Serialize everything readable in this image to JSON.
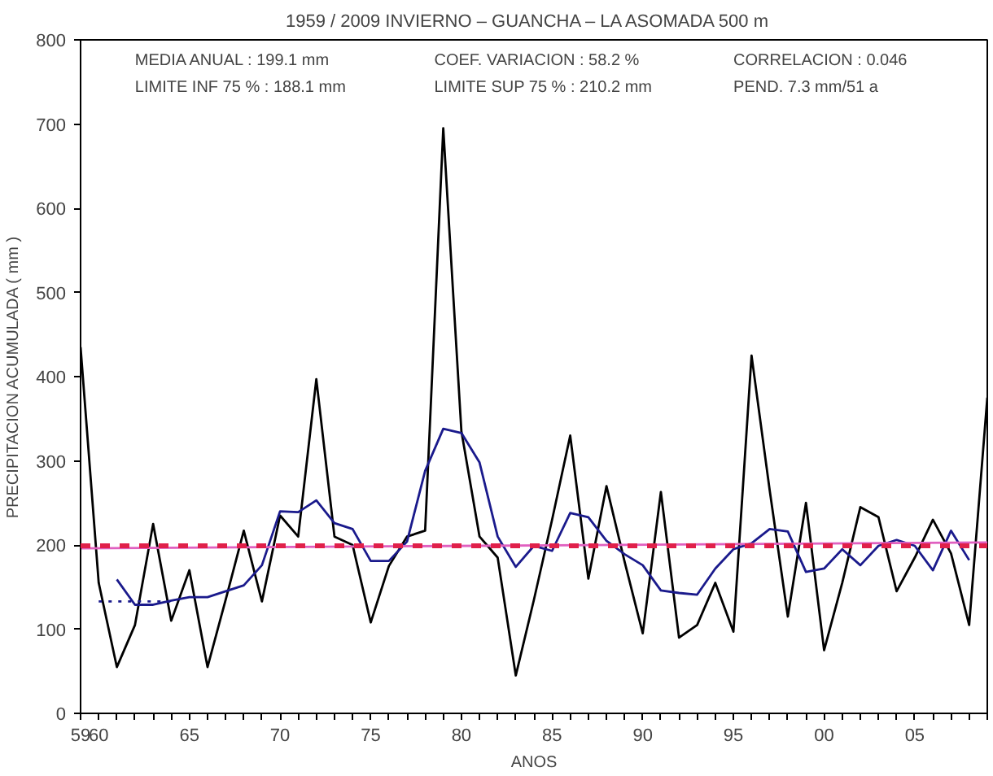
{
  "chart_data": {
    "type": "line",
    "title": "1959 / 2009  INVIERNO – GUANCHA – LA ASOMADA  500 m",
    "xlabel": "ANOS",
    "ylabel": "PRECIPITACION ACUMULADA ( mm )",
    "x": [
      1959,
      1960,
      1961,
      1962,
      1963,
      1964,
      1965,
      1966,
      1967,
      1968,
      1969,
      1970,
      1971,
      1972,
      1973,
      1974,
      1975,
      1976,
      1977,
      1978,
      1979,
      1980,
      1981,
      1982,
      1983,
      1984,
      1985,
      1986,
      1987,
      1988,
      1989,
      1990,
      1991,
      1992,
      1993,
      1994,
      1995,
      1996,
      1997,
      1998,
      1999,
      2000,
      2001,
      2002,
      2003,
      2004,
      2005,
      2006,
      2007,
      2008,
      2009
    ],
    "series": [
      {
        "color": "#000000",
        "values": [
          435,
          155,
          55,
          105,
          225,
          110,
          170,
          55,
          135,
          217,
          133,
          235,
          210,
          397,
          210,
          200,
          108,
          175,
          210,
          217,
          695,
          335,
          210,
          185,
          45,
          135,
          230,
          330,
          160,
          270,
          180,
          95,
          263,
          90,
          105,
          155,
          97,
          425,
          265,
          115,
          250,
          75,
          155,
          245,
          233,
          145,
          185,
          230,
          190,
          105,
          375
        ]
      },
      {
        "color": "#1a1a8c",
        "x": [
          1961,
          1962,
          1963,
          1964,
          1965,
          1966,
          1967,
          1968,
          1969,
          1970,
          1971,
          1972,
          1973,
          1974,
          1975,
          1976,
          1977,
          1978,
          1979,
          1980,
          1981,
          1982,
          1983,
          1984,
          1985,
          1986,
          1987,
          1988,
          1989,
          1990,
          1991,
          1992,
          1993,
          1994,
          1995,
          1996,
          1997,
          1998,
          1999,
          2000,
          2001,
          2002,
          2003,
          2004,
          2005,
          2006,
          2007,
          2008
        ],
        "values": [
          159,
          129,
          129,
          134,
          138,
          138,
          145,
          152,
          176,
          240,
          239,
          253,
          226,
          219,
          181,
          181,
          204,
          288,
          338,
          333,
          298,
          210,
          174,
          199,
          193,
          238,
          233,
          205,
          189,
          176,
          146,
          143,
          141,
          172,
          195,
          202,
          219,
          216,
          168,
          172,
          195,
          176,
          199,
          206,
          199,
          170,
          217,
          182
        ]
      },
      {
        "color": "#1a1a8c",
        "line_style": "dotted",
        "x": [
          1960,
          1964
        ],
        "values": [
          133,
          133
        ]
      },
      {
        "color": "#e060c0",
        "x": [
          1959,
          2009
        ],
        "values": [
          196,
          203
        ]
      }
    ],
    "ref_lines": [
      {
        "axis": "y",
        "value": 199.1,
        "color": "#e0204a",
        "line_style": "dashed"
      }
    ],
    "annotations": [
      "MEDIA ANUAL    :  199.1 mm",
      "LIMITE INF 75 % :  188.1 mm",
      "COEF. VARIACION :   58.2 %",
      "LIMITE SUP 75 % :  210.2 mm",
      "CORRELACION : 0.046",
      "PEND.     7.3 mm/51 a"
    ],
    "xlim": [
      1959,
      2009
    ],
    "ylim": [
      0,
      800
    ],
    "xticks": [
      {
        "value": 1959,
        "label": "59"
      },
      {
        "value": 1960,
        "label": "60"
      },
      {
        "value": 1961,
        "label": null
      },
      {
        "value": 1962,
        "label": null
      },
      {
        "value": 1963,
        "label": null
      },
      {
        "value": 1964,
        "label": null
      },
      {
        "value": 1965,
        "label": "65"
      },
      {
        "value": 1966,
        "label": null
      },
      {
        "value": 1967,
        "label": null
      },
      {
        "value": 1968,
        "label": null
      },
      {
        "value": 1969,
        "label": null
      },
      {
        "value": 1970,
        "label": "70"
      },
      {
        "value": 1971,
        "label": null
      },
      {
        "value": 1972,
        "label": null
      },
      {
        "value": 1973,
        "label": null
      },
      {
        "value": 1974,
        "label": null
      },
      {
        "value": 1975,
        "label": "75"
      },
      {
        "value": 1976,
        "label": null
      },
      {
        "value": 1977,
        "label": null
      },
      {
        "value": 1978,
        "label": null
      },
      {
        "value": 1979,
        "label": null
      },
      {
        "value": 1980,
        "label": "80"
      },
      {
        "value": 1981,
        "label": null
      },
      {
        "value": 1982,
        "label": null
      },
      {
        "value": 1983,
        "label": null
      },
      {
        "value": 1984,
        "label": null
      },
      {
        "value": 1985,
        "label": "85"
      },
      {
        "value": 1986,
        "label": null
      },
      {
        "value": 1987,
        "label": null
      },
      {
        "value": 1988,
        "label": null
      },
      {
        "value": 1989,
        "label": null
      },
      {
        "value": 1990,
        "label": "90"
      },
      {
        "value": 1991,
        "label": null
      },
      {
        "value": 1992,
        "label": null
      },
      {
        "value": 1993,
        "label": null
      },
      {
        "value": 1994,
        "label": null
      },
      {
        "value": 1995,
        "label": "95"
      },
      {
        "value": 1996,
        "label": null
      },
      {
        "value": 1997,
        "label": null
      },
      {
        "value": 1998,
        "label": null
      },
      {
        "value": 1999,
        "label": null
      },
      {
        "value": 2000,
        "label": "00"
      },
      {
        "value": 2001,
        "label": null
      },
      {
        "value": 2002,
        "label": null
      },
      {
        "value": 2003,
        "label": null
      },
      {
        "value": 2004,
        "label": null
      },
      {
        "value": 2005,
        "label": "05"
      },
      {
        "value": 2006,
        "label": null
      },
      {
        "value": 2007,
        "label": null
      },
      {
        "value": 2008,
        "label": null
      },
      {
        "value": 2009,
        "label": null
      }
    ],
    "yticks": [
      0,
      100,
      200,
      300,
      400,
      500,
      600,
      700,
      800
    ],
    "grid": false,
    "marker": "none",
    "line_style": "solid"
  }
}
